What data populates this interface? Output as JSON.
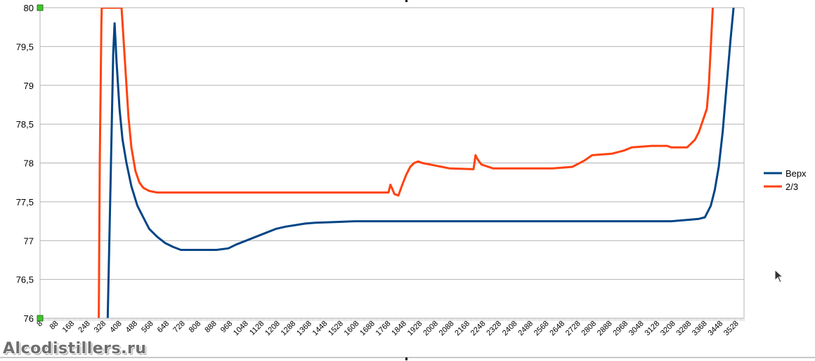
{
  "chart_data": {
    "type": "line",
    "title": "",
    "xlabel": "",
    "ylabel": "",
    "ylim": [
      76,
      80
    ],
    "xlim": [
      8,
      3568
    ],
    "y_ticks": [
      "76",
      "76,5",
      "77",
      "77,5",
      "78",
      "78,5",
      "79",
      "79,5",
      "80"
    ],
    "x_ticks": [
      "8",
      "88",
      "168",
      "248",
      "328",
      "408",
      "488",
      "568",
      "648",
      "728",
      "808",
      "888",
      "968",
      "1048",
      "1128",
      "1208",
      "1288",
      "1368",
      "1448",
      "1528",
      "1608",
      "1688",
      "1768",
      "1848",
      "1928",
      "2008",
      "2088",
      "2168",
      "2248",
      "2328",
      "2408",
      "2488",
      "2568",
      "2648",
      "2728",
      "2808",
      "2888",
      "2968",
      "3048",
      "3128",
      "3208",
      "3288",
      "3368",
      "3448",
      "3528"
    ],
    "grid": true,
    "legend_position": "right",
    "series": [
      {
        "name": "Верх",
        "color": "#004586",
        "x": [
          350,
          365,
          378,
          385,
          395,
          410,
          425,
          445,
          470,
          500,
          530,
          560,
          600,
          640,
          680,
          720,
          800,
          900,
          960,
          1000,
          1050,
          1100,
          1150,
          1200,
          1250,
          1300,
          1350,
          1400,
          1500,
          1600,
          1800,
          2000,
          2500,
          3000,
          3200,
          3300,
          3340,
          3370,
          3400,
          3420,
          3440,
          3460,
          3480,
          3500,
          3515
        ],
        "y": [
          76.0,
          77.8,
          79.4,
          79.8,
          79.3,
          78.7,
          78.3,
          78.0,
          77.7,
          77.45,
          77.3,
          77.15,
          77.05,
          76.97,
          76.92,
          76.88,
          76.88,
          76.88,
          76.9,
          76.95,
          77.0,
          77.05,
          77.1,
          77.15,
          77.18,
          77.2,
          77.22,
          77.23,
          77.24,
          77.25,
          77.25,
          77.25,
          77.25,
          77.25,
          77.25,
          77.27,
          77.28,
          77.3,
          77.45,
          77.65,
          77.95,
          78.4,
          79.0,
          79.6,
          80.0
        ]
      },
      {
        "name": "2/3",
        "color": "#ff420e",
        "x": [
          305,
          310,
          318,
          320,
          420,
          440,
          455,
          470,
          490,
          510,
          530,
          560,
          600,
          700,
          800,
          1000,
          1200,
          1400,
          1600,
          1770,
          1780,
          1800,
          1820,
          1840,
          1860,
          1880,
          1900,
          1920,
          1940,
          2000,
          2080,
          2200,
          2210,
          2220,
          2240,
          2300,
          2400,
          2500,
          2600,
          2700,
          2760,
          2800,
          2900,
          2960,
          3000,
          3100,
          3180,
          3200,
          3280,
          3300,
          3320,
          3340,
          3360,
          3380,
          3390,
          3400,
          3410
        ],
        "y": [
          76.0,
          78.0,
          79.8,
          80.0,
          80.0,
          79.2,
          78.6,
          78.2,
          77.9,
          77.75,
          77.68,
          77.64,
          77.62,
          77.62,
          77.62,
          77.62,
          77.62,
          77.62,
          77.62,
          77.62,
          77.72,
          77.6,
          77.58,
          77.72,
          77.85,
          77.95,
          78.0,
          78.02,
          78.0,
          77.97,
          77.93,
          77.92,
          78.1,
          78.05,
          77.98,
          77.93,
          77.93,
          77.93,
          77.93,
          77.95,
          78.03,
          78.1,
          78.12,
          78.16,
          78.2,
          78.22,
          78.22,
          78.2,
          78.2,
          78.25,
          78.3,
          78.4,
          78.55,
          78.7,
          79.0,
          79.5,
          80.0
        ]
      }
    ]
  },
  "watermark": "Alcodistillers.ru"
}
